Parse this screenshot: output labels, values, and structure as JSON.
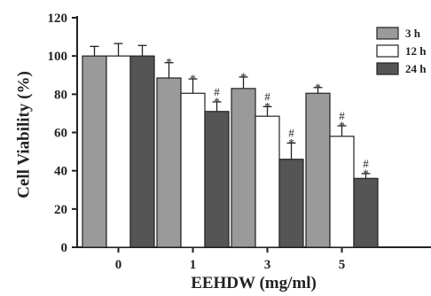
{
  "chart_data": {
    "type": "bar",
    "xlabel": "EEHDW (mg/ml)",
    "ylabel": "Cell Viability (%)",
    "categories": [
      "0",
      "1",
      "3",
      "5"
    ],
    "ylim": [
      0,
      120
    ],
    "yticks": [
      "0",
      "20",
      "40",
      "60",
      "80",
      "100",
      "120"
    ],
    "legend_position": "top-right",
    "series": [
      {
        "name": "3 h",
        "color": "#9a9a9a",
        "values": [
          100,
          88.5,
          83,
          80.5
        ],
        "errors": [
          5,
          8,
          6,
          3
        ],
        "marks": [
          "",
          "*",
          "*",
          "*"
        ]
      },
      {
        "name": "12 h",
        "color": "#ffffff",
        "values": [
          100,
          80.5,
          68.5,
          58
        ],
        "errors": [
          6.5,
          7.5,
          5,
          5.5
        ],
        "marks": [
          "",
          "*",
          "#\n*",
          "#\n*"
        ]
      },
      {
        "name": "24 h",
        "color": "#555555",
        "values": [
          100,
          71,
          46,
          36
        ],
        "errors": [
          5.5,
          5,
          8.5,
          2.5
        ],
        "marks": [
          "",
          "#\n*",
          "#\n*",
          "#\n*"
        ]
      }
    ]
  }
}
